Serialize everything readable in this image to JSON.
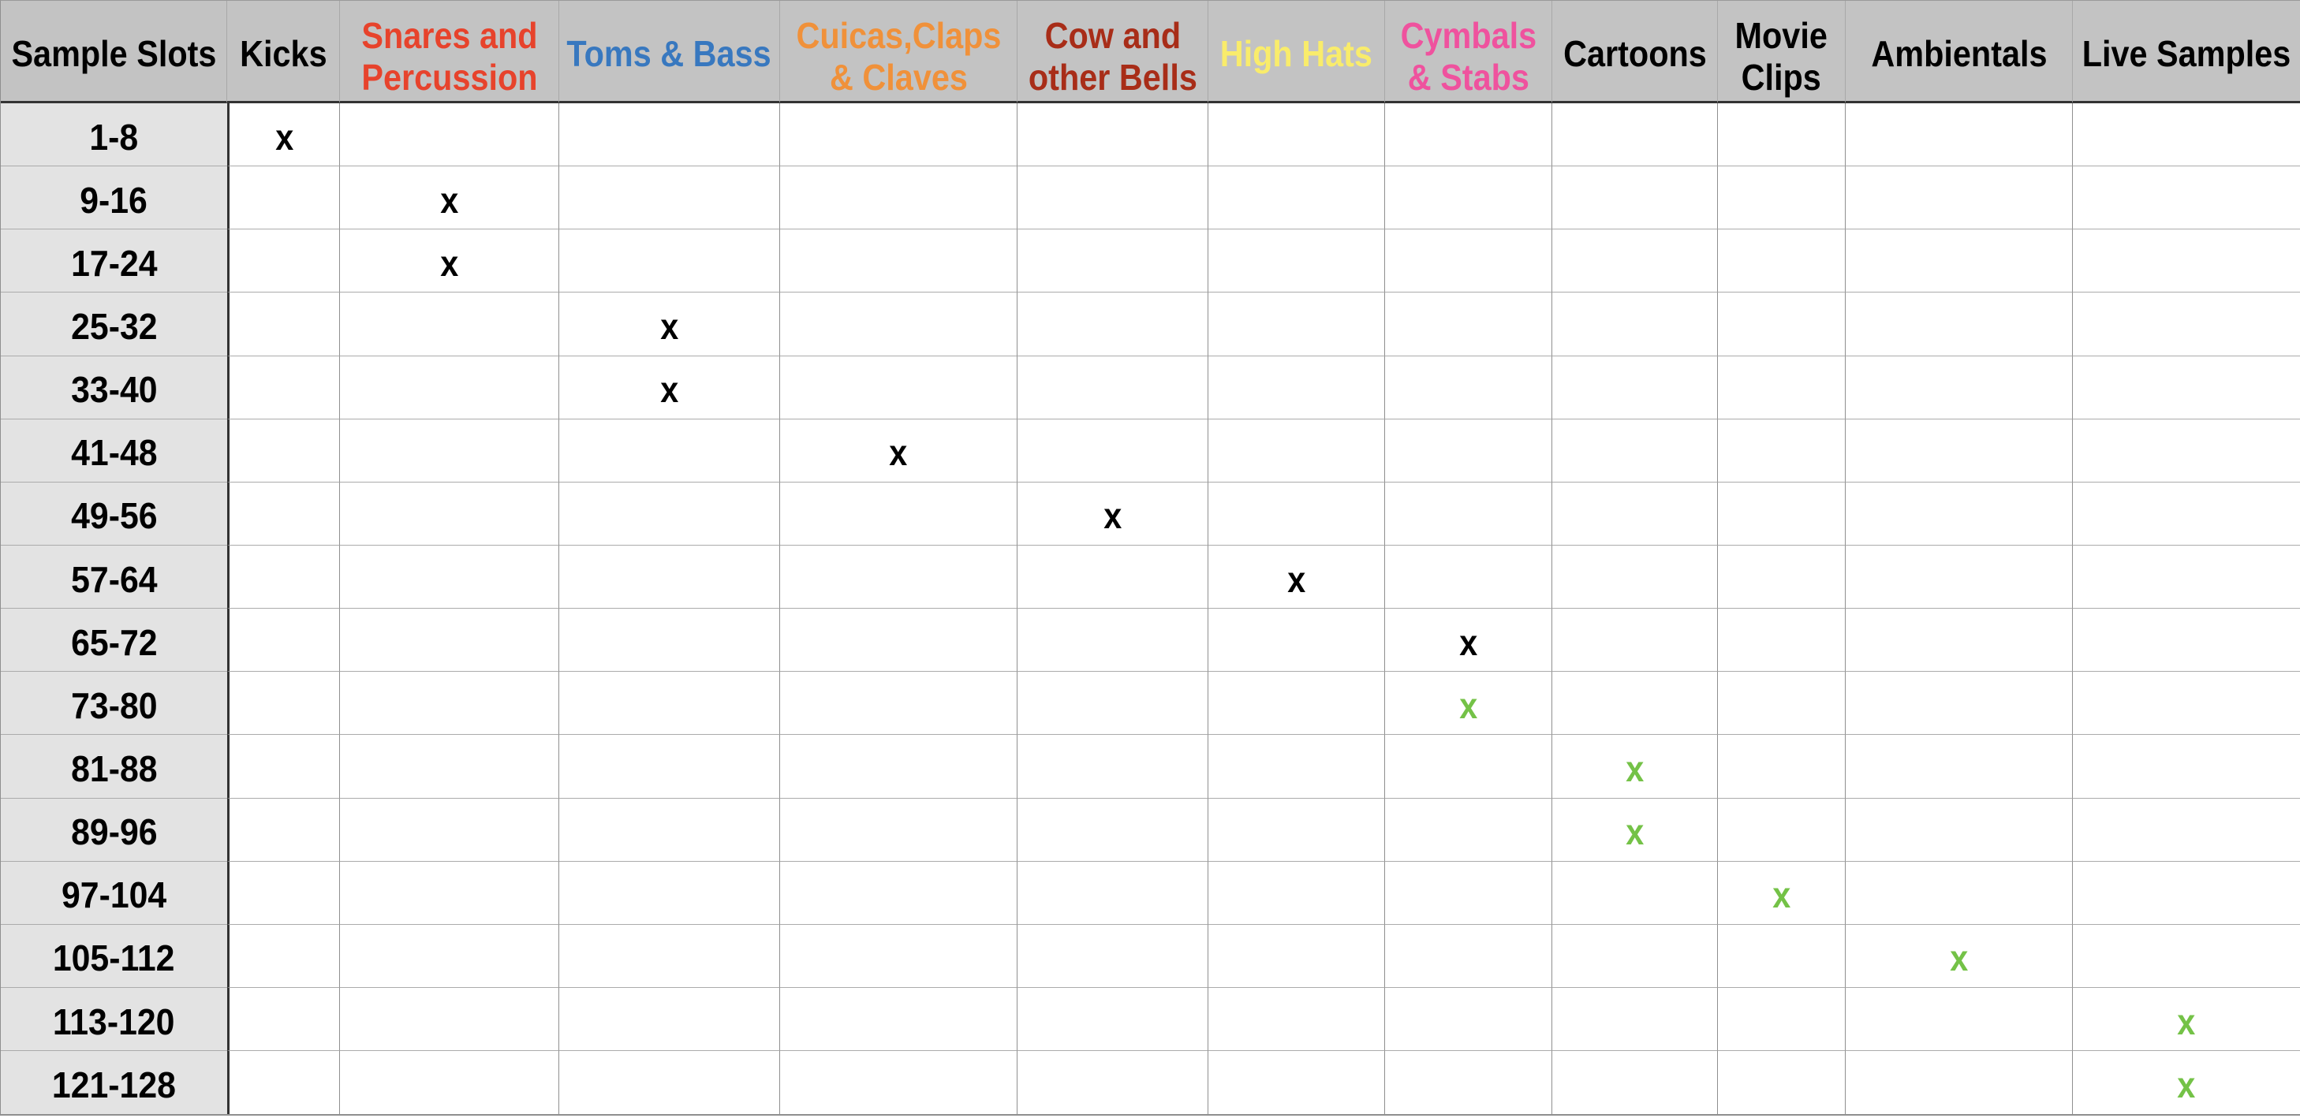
{
  "table": {
    "corner_header": "Sample Slots",
    "corner_header_color": "#000000",
    "columns": [
      {
        "label": "Kicks",
        "color": "#000000"
      },
      {
        "label": "Snares and\nPercussion",
        "color": "#e7432c"
      },
      {
        "label": "Toms & Bass",
        "color": "#3878bf"
      },
      {
        "label": "Cuicas,Claps\n& Claves",
        "color": "#f0913a"
      },
      {
        "label": "Cow and\nother Bells",
        "color": "#a82d18"
      },
      {
        "label": "High Hats",
        "color": "#f9ec6b"
      },
      {
        "label": "Cymbals\n& Stabs",
        "color": "#ef529e"
      },
      {
        "label": "Cartoons",
        "color": "#000000"
      },
      {
        "label": "Movie\nClips",
        "color": "#000000"
      },
      {
        "label": "Ambientals",
        "color": "#000000"
      },
      {
        "label": "Live Samples",
        "color": "#000000"
      }
    ],
    "mark_glyph": "x",
    "mark_colors": {
      "black": "#000000",
      "green": "#74c247"
    },
    "rows": [
      {
        "label": "1-8",
        "mark_column": "Kicks",
        "mark_color": "black"
      },
      {
        "label": "9-16",
        "mark_column": "Snares and\nPercussion",
        "mark_color": "black"
      },
      {
        "label": "17-24",
        "mark_column": "Snares and\nPercussion",
        "mark_color": "black"
      },
      {
        "label": "25-32",
        "mark_column": "Toms & Bass",
        "mark_color": "black"
      },
      {
        "label": "33-40",
        "mark_column": "Toms & Bass",
        "mark_color": "black"
      },
      {
        "label": "41-48",
        "mark_column": "Cuicas,Claps\n& Claves",
        "mark_color": "black"
      },
      {
        "label": "49-56",
        "mark_column": "Cow and\nother Bells",
        "mark_color": "black"
      },
      {
        "label": "57-64",
        "mark_column": "High Hats",
        "mark_color": "black"
      },
      {
        "label": "65-72",
        "mark_column": "Cymbals\n& Stabs",
        "mark_color": "black"
      },
      {
        "label": "73-80",
        "mark_column": "Cymbals\n& Stabs",
        "mark_color": "green"
      },
      {
        "label": "81-88",
        "mark_column": "Cartoons",
        "mark_color": "green"
      },
      {
        "label": "89-96",
        "mark_column": "Cartoons",
        "mark_color": "green"
      },
      {
        "label": "97-104",
        "mark_column": "Movie\nClips",
        "mark_color": "green"
      },
      {
        "label": "105-112",
        "mark_column": "Ambientals",
        "mark_color": "green"
      },
      {
        "label": "113-120",
        "mark_column": "Live Samples",
        "mark_color": "green"
      },
      {
        "label": "121-128",
        "mark_column": "Live Samples",
        "mark_color": "green"
      }
    ]
  },
  "chart_data": {
    "type": "table",
    "title": "Sample Slots category map",
    "corner_header": "Sample Slots",
    "column_headers": [
      "Kicks",
      "Snares and Percussion",
      "Toms & Bass",
      "Cuicas,Claps & Claves",
      "Cow and other Bells",
      "High Hats",
      "Cymbals & Stabs",
      "Cartoons",
      "Movie Clips",
      "Ambientals",
      "Live Samples"
    ],
    "row_headers": [
      "1-8",
      "9-16",
      "17-24",
      "25-32",
      "33-40",
      "41-48",
      "49-56",
      "57-64",
      "65-72",
      "73-80",
      "81-88",
      "89-96",
      "97-104",
      "105-112",
      "113-120",
      "121-128"
    ],
    "marks": [
      {
        "row": "1-8",
        "column": "Kicks",
        "value": "x",
        "color": "black"
      },
      {
        "row": "9-16",
        "column": "Snares and Percussion",
        "value": "x",
        "color": "black"
      },
      {
        "row": "17-24",
        "column": "Snares and Percussion",
        "value": "x",
        "color": "black"
      },
      {
        "row": "25-32",
        "column": "Toms & Bass",
        "value": "x",
        "color": "black"
      },
      {
        "row": "33-40",
        "column": "Toms & Bass",
        "value": "x",
        "color": "black"
      },
      {
        "row": "41-48",
        "column": "Cuicas,Claps & Claves",
        "value": "x",
        "color": "black"
      },
      {
        "row": "49-56",
        "column": "Cow and other Bells",
        "value": "x",
        "color": "black"
      },
      {
        "row": "57-64",
        "column": "High Hats",
        "value": "x",
        "color": "black"
      },
      {
        "row": "65-72",
        "column": "Cymbals & Stabs",
        "value": "x",
        "color": "black"
      },
      {
        "row": "73-80",
        "column": "Cymbals & Stabs",
        "value": "x",
        "color": "green"
      },
      {
        "row": "81-88",
        "column": "Cartoons",
        "value": "x",
        "color": "green"
      },
      {
        "row": "89-96",
        "column": "Cartoons",
        "value": "x",
        "color": "green"
      },
      {
        "row": "97-104",
        "column": "Movie Clips",
        "value": "x",
        "color": "green"
      },
      {
        "row": "105-112",
        "column": "Ambientals",
        "value": "x",
        "color": "green"
      },
      {
        "row": "113-120",
        "column": "Live Samples",
        "value": "x",
        "color": "green"
      },
      {
        "row": "121-128",
        "column": "Live Samples",
        "value": "x",
        "color": "green"
      }
    ],
    "layout_hints": {
      "grid": true,
      "header_background": "#c3c3c3",
      "row_header_background": "#e3e3e3"
    }
  }
}
